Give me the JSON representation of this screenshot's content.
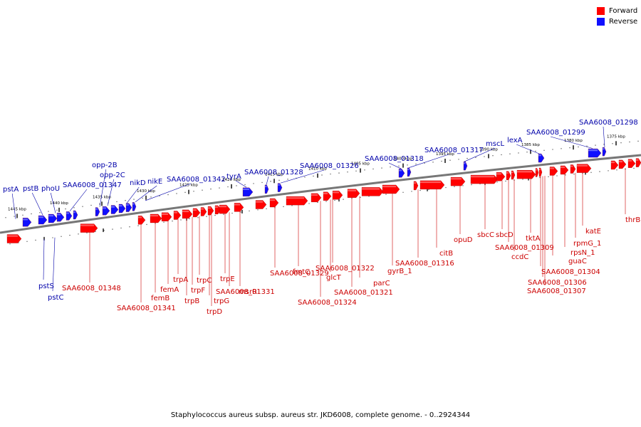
{
  "legend": {
    "forward": "Forward",
    "reverse": "Reverse",
    "forward_color": "#ff0000",
    "reverse_color": "#1010ff"
  },
  "colors": {
    "forward_label": "#cc0000",
    "reverse_label": "#0000aa",
    "forward_fill": "#ff0000",
    "reverse_fill": "#1010ff",
    "backbone": "#777777"
  },
  "footer": "Staphylococcus aureus subsp. aureus str. JKD6008, complete genome. - 0..2924344",
  "ticks": [
    "1445 kbp",
    "1440 kbp",
    "1435 kbp",
    "1430 kbp",
    "1425 kbp",
    "1420 kbp",
    "1415 kbp",
    "1410 kbp",
    "1405 kbp",
    "1400 kbp",
    "1395 kbp",
    "1390 kbp",
    "1385 kbp",
    "1380 kbp",
    "1375 kbp"
  ],
  "reverse_labels": [
    "pstA",
    "pstB",
    "phoU",
    "SAA6008_01347",
    "opp-2B",
    "opp-2C",
    "nikD",
    "nikE",
    "SAA6008_01342",
    "tyrA",
    "SAA6008_01328",
    "SAA6008_01326",
    "SAA6008_01318",
    "SAA6008_01317",
    "mscL",
    "lexA",
    "SAA6008_01299",
    "SAA6008_01298",
    "pstS",
    "pstC"
  ],
  "forward_labels": [
    "SAA6008_01348",
    "SAA6008_01341",
    "femB",
    "femA",
    "trpA",
    "trpB",
    "trpF",
    "trpC",
    "trpG",
    "trpD",
    "trpE",
    "SAA6008_01331",
    "msrR",
    "SAA6008_01329",
    "fmtC",
    "glcT",
    "SAA6008_01324",
    "SAA6008_01322",
    "SAA6008_01321",
    "parC",
    "gyrB_1",
    "SAA6008_01316",
    "citB",
    "opuD",
    "sbcC",
    "sbcD",
    "SAA6008_01309",
    "ccdC",
    "tktA",
    "SAA6008_01304",
    "SAA6008_01306",
    "SAA6008_01307",
    "guaC",
    "rpsN_1",
    "rpmG_1",
    "katE",
    "thrB"
  ]
}
